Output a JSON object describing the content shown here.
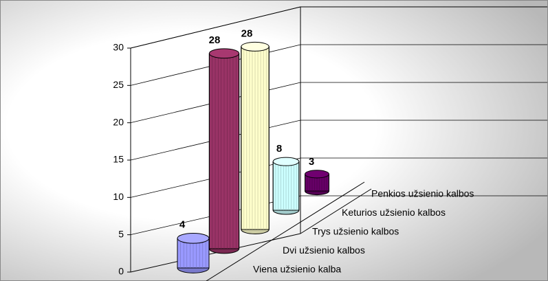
{
  "chart_data": {
    "type": "bar3d",
    "categories": [
      "Viena užsienio kalba",
      "Dvi užsienio kalbos",
      "Trys užsienio kalbos",
      "Keturios užsienio kalbos",
      "Penkios užsienio kalbos"
    ],
    "values": [
      4,
      28,
      28,
      8,
      3
    ],
    "colors": [
      "#9999ff",
      "#993366",
      "#ffffcc",
      "#ccffff",
      "#660066"
    ],
    "ylim": [
      0,
      30
    ],
    "yticks": [
      0,
      5,
      10,
      15,
      20,
      25,
      30
    ],
    "grid": true
  }
}
